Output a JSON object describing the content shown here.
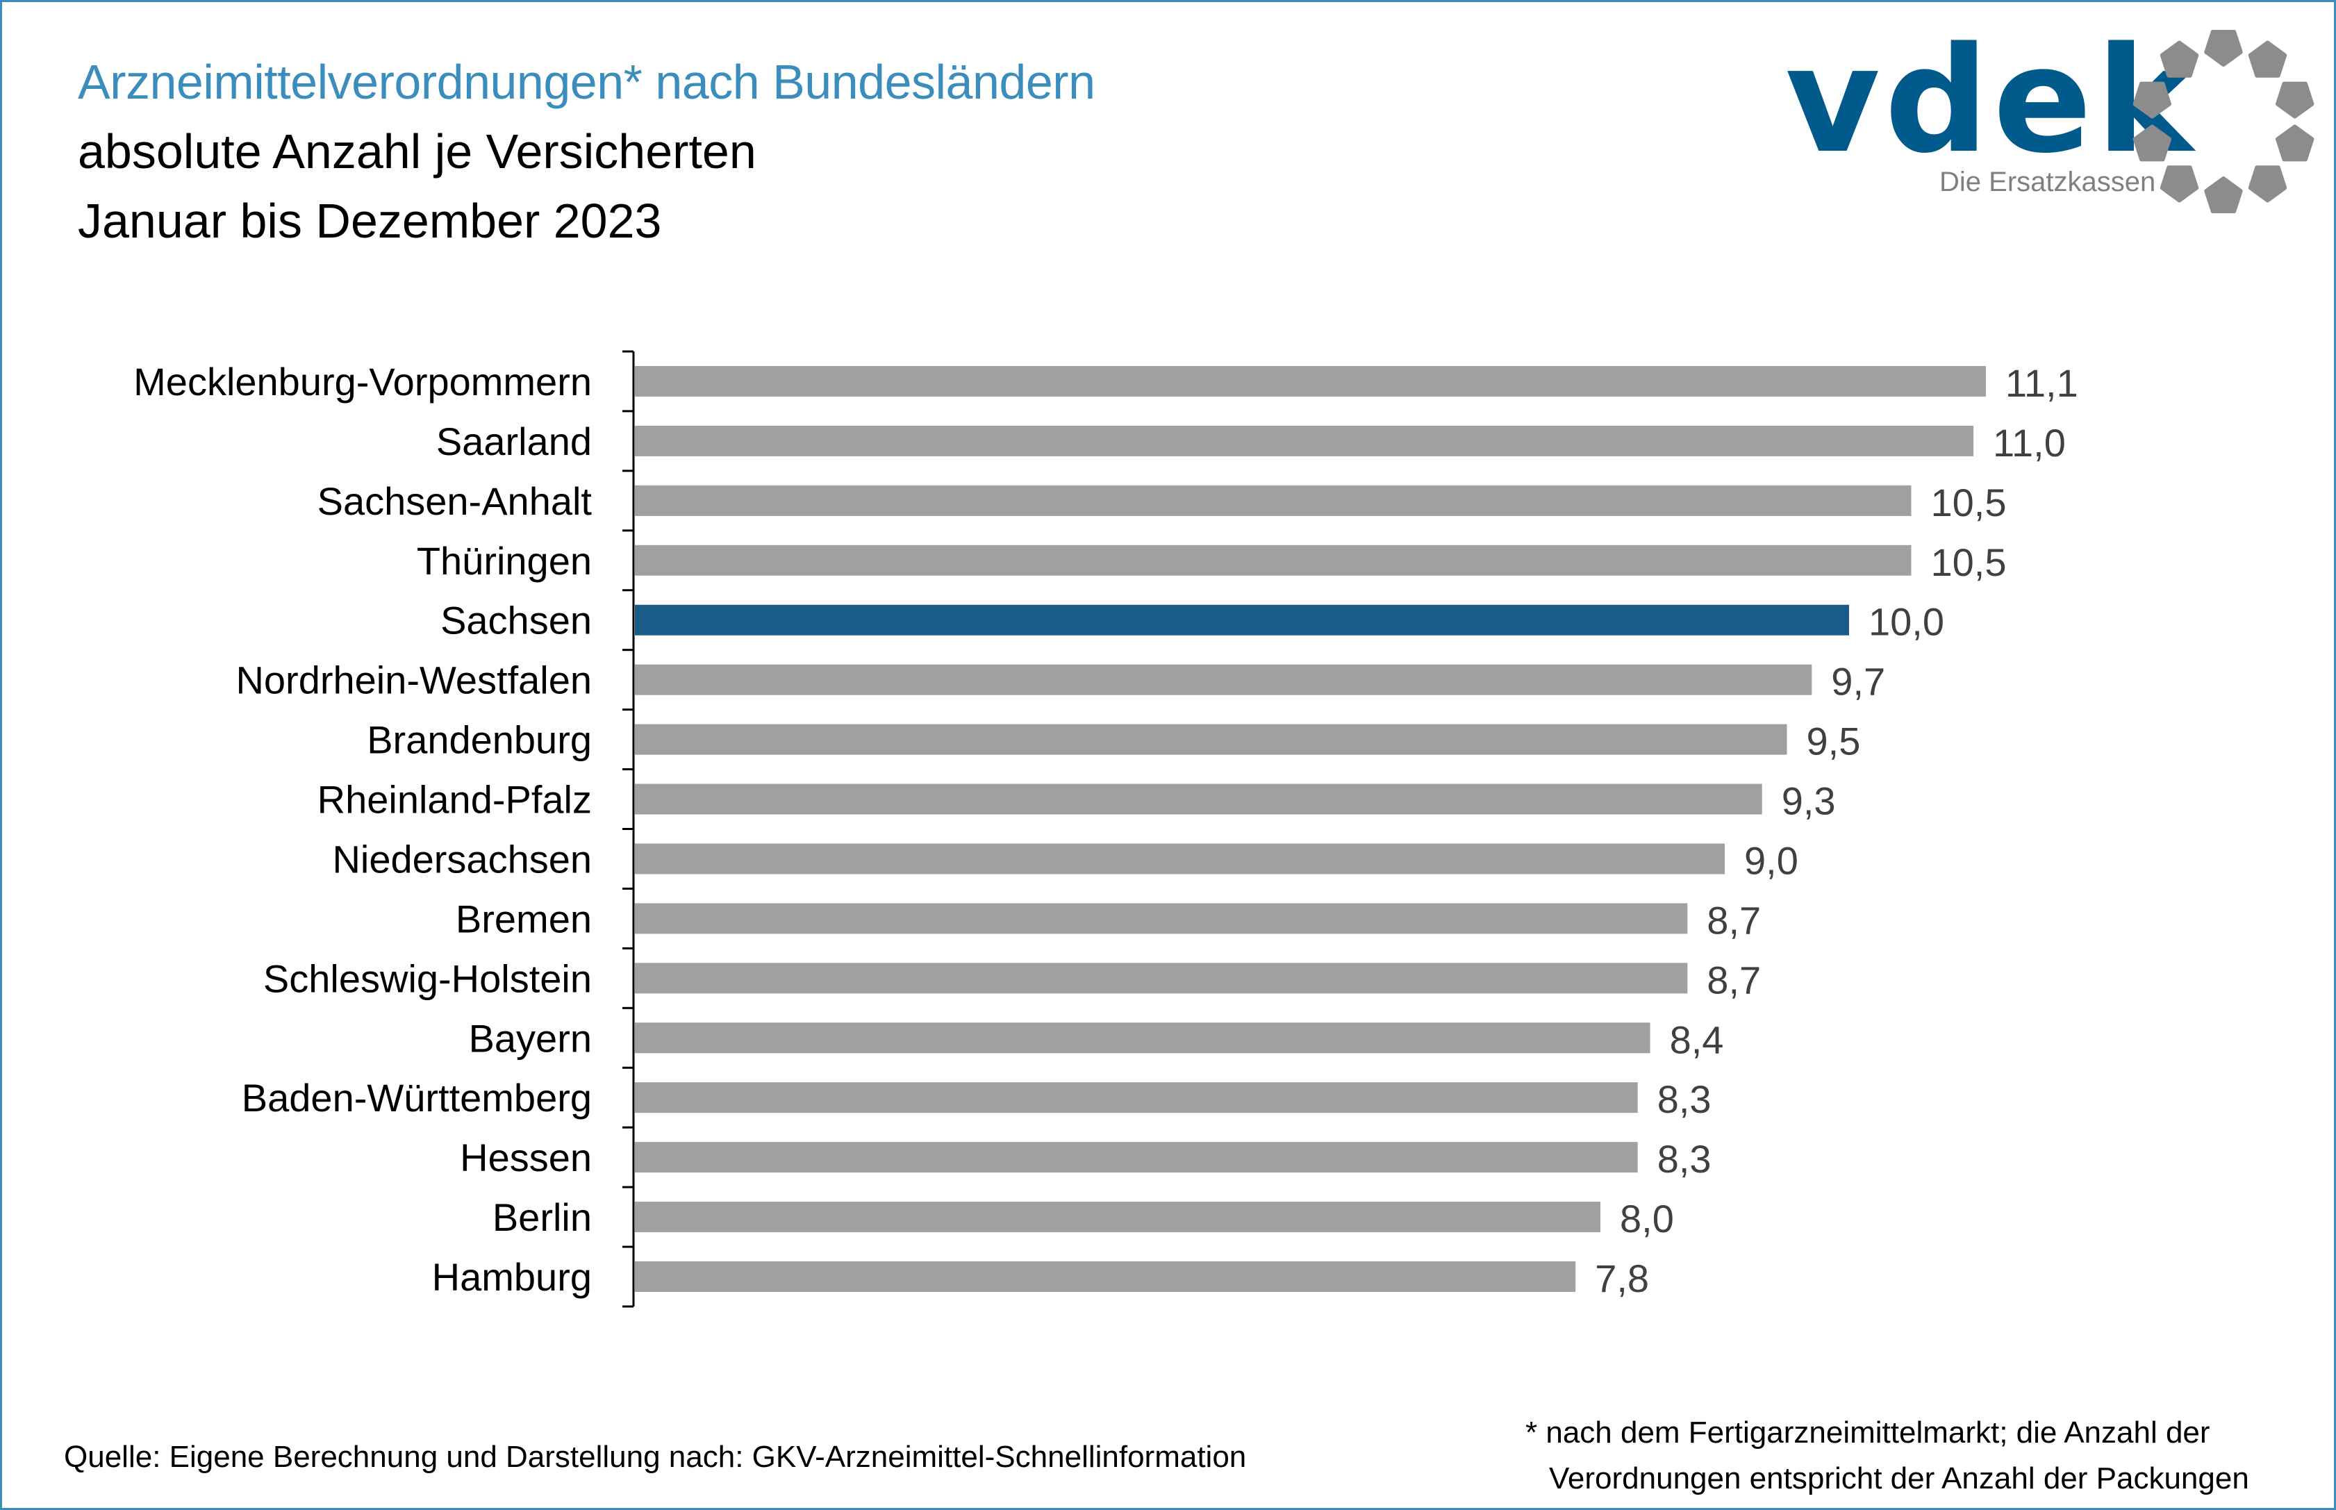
{
  "header": {
    "title": "Arzneimittelverordnungen* nach Bundesländern",
    "subtitle": "absolute Anzahl je Versicherten",
    "period": "Januar bis Dezember 2023"
  },
  "logo": {
    "wordmark": "vdek",
    "tagline": "Die Ersatzkassen",
    "icon": "ring-of-pentagons-icon",
    "colors": {
      "wordmark": "#005a8c",
      "ring": "#8c8c8c"
    }
  },
  "colors": {
    "title": "#3a8dbd",
    "bar_default": "#a0a0a0",
    "bar_highlight": "#185c87",
    "frame": "#3a8dbd"
  },
  "chart_data": {
    "type": "bar",
    "orientation": "horizontal",
    "title": "Arzneimittelverordnungen* nach Bundesländern",
    "subtitle": "absolute Anzahl je Versicherten, Januar bis Dezember 2023",
    "xlabel": "",
    "ylabel": "",
    "grid": false,
    "categories": [
      "Mecklenburg-Vorpommern",
      "Saarland",
      "Sachsen-Anhalt",
      "Thüringen",
      "Sachsen",
      "Nordrhein-Westfalen",
      "Brandenburg",
      "Rheinland-Pfalz",
      "Niedersachsen",
      "Bremen",
      "Schleswig-Holstein",
      "Bayern",
      "Baden-Württemberg",
      "Hessen",
      "Berlin",
      "Hamburg"
    ],
    "values": [
      11.1,
      11.0,
      10.5,
      10.5,
      10.0,
      9.7,
      9.5,
      9.3,
      9.0,
      8.7,
      8.7,
      8.4,
      8.3,
      8.3,
      8.0,
      7.8
    ],
    "value_labels": [
      "11,1",
      "11,0",
      "10,5",
      "10,5",
      "10,0",
      "9,7",
      "9,5",
      "9,3",
      "9,0",
      "8,7",
      "8,7",
      "8,4",
      "8,3",
      "8,3",
      "8,0",
      "7,8"
    ],
    "highlight": "Sachsen"
  },
  "footer": {
    "source": "Quelle: Eigene Berechnung und Darstellung nach: GKV-Arzneimittel-Schnellinformation",
    "note_line1": "* nach dem Fertigarzneimittelmarkt; die Anzahl der",
    "note_line2": "Verordnungen entspricht der Anzahl der Packungen"
  }
}
